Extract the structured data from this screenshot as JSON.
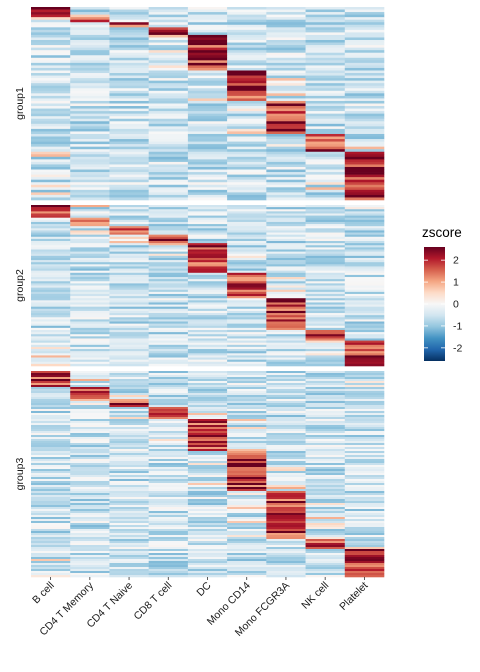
{
  "chart_data": {
    "type": "heatmap",
    "title": "",
    "columns": [
      "B cell",
      "CD4 T Memory",
      "CD4 T Naive",
      "CD8 T cell",
      "DC",
      "Mono CD14",
      "Mono FCGR3A",
      "NK cell",
      "Platelet"
    ],
    "groups": [
      {
        "name": "group1",
        "blocks": [
          {
            "column": "B cell",
            "rows": 4
          },
          {
            "column": "CD4 T Memory",
            "rows": 2
          },
          {
            "column": "CD4 T Naive",
            "rows": 2
          },
          {
            "column": "CD8 T cell",
            "rows": 3
          },
          {
            "column": "DC",
            "rows": 14
          },
          {
            "column": "Mono CD14",
            "rows": 12
          },
          {
            "column": "Mono FCGR3A",
            "rows": 13
          },
          {
            "column": "NK cell",
            "rows": 7
          },
          {
            "column": "Platelet",
            "rows": 19
          }
        ]
      },
      {
        "name": "group2",
        "blocks": [
          {
            "column": "B cell",
            "rows": 6
          },
          {
            "column": "CD4 T Memory",
            "rows": 4
          },
          {
            "column": "CD4 T Naive",
            "rows": 4
          },
          {
            "column": "CD8 T cell",
            "rows": 4
          },
          {
            "column": "DC",
            "rows": 14
          },
          {
            "column": "Mono CD14",
            "rows": 12
          },
          {
            "column": "Mono FCGR3A",
            "rows": 15
          },
          {
            "column": "NK cell",
            "rows": 5
          },
          {
            "column": "Platelet",
            "rows": 12
          }
        ]
      },
      {
        "name": "group3",
        "blocks": [
          {
            "column": "B cell",
            "rows": 8
          },
          {
            "column": "CD4 T Memory",
            "rows": 6
          },
          {
            "column": "CD4 T Naive",
            "rows": 4
          },
          {
            "column": "CD8 T cell",
            "rows": 6
          },
          {
            "column": "DC",
            "rows": 16
          },
          {
            "column": "Mono CD14",
            "rows": 20
          },
          {
            "column": "Mono FCGR3A",
            "rows": 24
          },
          {
            "column": "NK cell",
            "rows": 5
          },
          {
            "column": "Platelet",
            "rows": 14
          }
        ]
      }
    ],
    "legend": {
      "title": "zscore",
      "min": -2.6,
      "max": 2.6,
      "ticks": [
        2,
        1,
        0,
        -1,
        -2
      ],
      "tick_labels": [
        "2",
        "1",
        "0",
        "-1",
        "-2"
      ],
      "placement": "right"
    },
    "colorscale": [
      "#053061",
      "#2166ac",
      "#4393c3",
      "#92c5de",
      "#d1e5f0",
      "#f7f7f7",
      "#fddbc7",
      "#f4a582",
      "#d6604d",
      "#b2182b",
      "#67001f"
    ],
    "panel_background": "#ebebeb",
    "grid": false
  }
}
